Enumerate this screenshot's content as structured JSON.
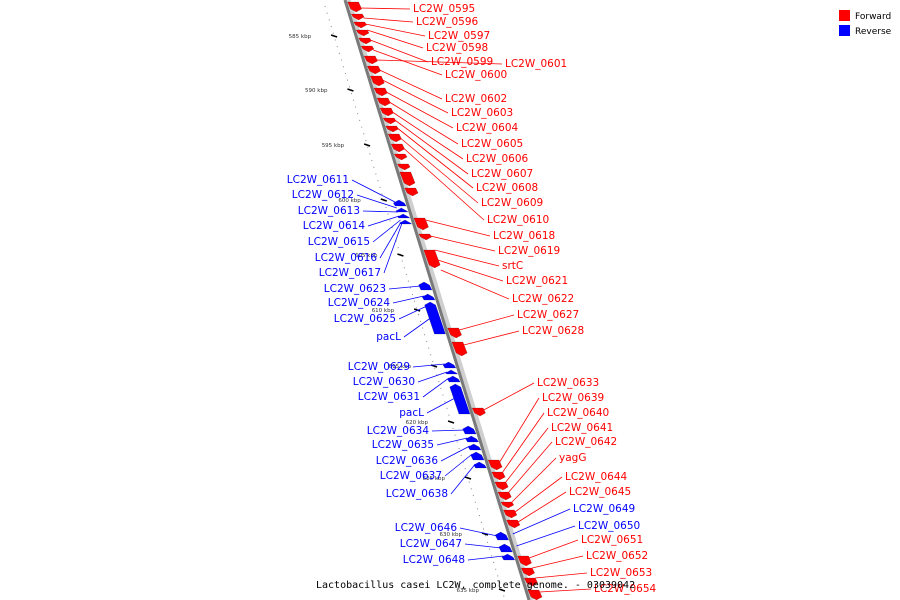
{
  "title": "Lactobacillus casei LC2W, complete genome. - 03039042",
  "legend": [
    {
      "label": "Forward",
      "color": "#ff0000"
    },
    {
      "label": "Reverse",
      "color": "#0000ff"
    }
  ],
  "ticks": [
    "585 kbp",
    "590 kbp",
    "595 kbp",
    "600 kbp",
    "605 kbp",
    "610 kbp",
    "615 kbp",
    "620 kbp",
    "625 kbp",
    "630 kbp",
    "635 kbp"
  ],
  "forward_labels": [
    "LC2W_0595",
    "LC2W_0596",
    "LC2W_0597",
    "LC2W_0598",
    "LC2W_0599",
    "LC2W_0600",
    "LC2W_0601",
    "LC2W_0602",
    "LC2W_0603",
    "LC2W_0604",
    "LC2W_0605",
    "LC2W_0606",
    "LC2W_0607",
    "LC2W_0608",
    "LC2W_0609",
    "LC2W_0610",
    "LC2W_0618",
    "LC2W_0619",
    "srtC",
    "LC2W_0621",
    "LC2W_0622",
    "LC2W_0627",
    "LC2W_0628",
    "LC2W_0633",
    "LC2W_0639",
    "LC2W_0640",
    "LC2W_0641",
    "LC2W_0642",
    "yagG",
    "LC2W_0644",
    "LC2W_0645",
    "LC2W_0651",
    "LC2W_0652",
    "LC2W_0653",
    "LC2W_0654"
  ],
  "reverse_labels_right": [
    "LC2W_0649",
    "LC2W_0650"
  ],
  "reverse_labels": [
    "LC2W_0611",
    "LC2W_0612",
    "LC2W_0613",
    "LC2W_0614",
    "LC2W_0615",
    "LC2W_0616",
    "LC2W_0617",
    "LC2W_0623",
    "LC2W_0624",
    "LC2W_0625",
    "pacL",
    "LC2W_0629",
    "LC2W_0630",
    "LC2W_0631",
    "pacL",
    "LC2W_0634",
    "LC2W_0635",
    "LC2W_0636",
    "LC2W_0637",
    "LC2W_0638",
    "LC2W_0646",
    "LC2W_0647",
    "LC2W_0648"
  ]
}
